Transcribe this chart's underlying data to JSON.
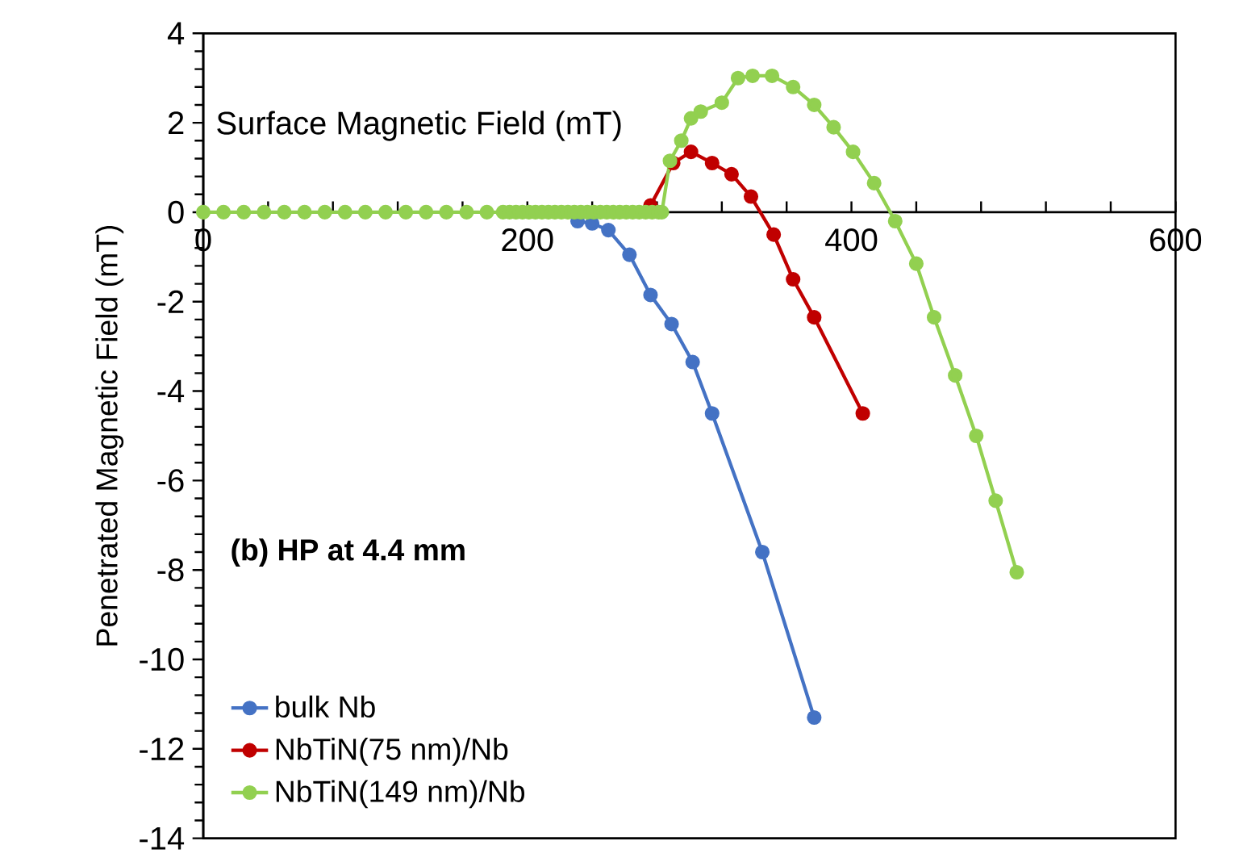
{
  "chart_data": {
    "type": "line",
    "xlabel": "Surface Magnetic Field (mT)",
    "ylabel": "Penetrated Magnetic Field (mT)",
    "annotations": [
      "(b) HP at 4.4 mm"
    ],
    "xlim": [
      0,
      600
    ],
    "ylim": [
      -14,
      4
    ],
    "xticks": [
      0,
      {
        "value": 40,
        "label": null
      },
      {
        "value": 80,
        "label": null
      },
      {
        "value": 120,
        "label": null
      },
      {
        "value": 160,
        "label": null
      },
      200,
      {
        "value": 240,
        "label": null
      },
      {
        "value": 280,
        "label": null
      },
      {
        "value": 320,
        "label": null
      },
      {
        "value": 360,
        "label": null
      },
      400,
      {
        "value": 440,
        "label": null
      },
      {
        "value": 480,
        "label": null
      },
      {
        "value": 520,
        "label": null
      },
      {
        "value": 560,
        "label": null
      },
      600
    ],
    "yticks": [
      -14,
      -12,
      -10,
      -8,
      -6,
      -4,
      -2,
      0,
      2,
      4
    ],
    "grid": false,
    "legend": "bottom left",
    "marker": "circle",
    "line_style": "solid",
    "series": [
      {
        "name": "bulk Nb",
        "color": "#4472c4",
        "x": [
          231,
          240,
          250,
          263,
          276,
          289,
          302,
          314,
          345,
          377
        ],
        "values": [
          -0.2,
          -0.25,
          -0.4,
          -0.95,
          -1.85,
          -2.5,
          -3.35,
          -4.5,
          -7.6,
          -11.3
        ]
      },
      {
        "name": "NbTiN(75 nm)/Nb",
        "color": "#c00000",
        "x": [
          276,
          290,
          301,
          314,
          326,
          338,
          352,
          364,
          377,
          407
        ],
        "values": [
          0.15,
          1.1,
          1.35,
          1.1,
          0.85,
          0.35,
          -0.5,
          -1.5,
          -2.35,
          -4.5
        ]
      },
      {
        "name": "NbTiN(149 nm)/Nb",
        "color": "#92d050",
        "x": [
          0,
          12.5,
          25,
          37.5,
          50,
          62.5,
          75,
          87.5,
          100,
          112.5,
          125,
          137.5,
          150,
          162.5,
          175,
          185,
          189,
          193,
          197,
          201,
          205,
          209,
          213,
          217,
          221,
          225,
          229,
          233,
          237,
          241,
          245,
          249,
          253,
          257,
          261,
          265,
          269,
          273,
          277,
          281,
          283,
          288,
          295,
          301,
          307,
          320,
          330,
          339,
          351,
          364,
          377,
          389,
          401,
          414,
          427,
          440,
          451,
          464,
          477,
          489,
          502
        ],
        "values": [
          0,
          0,
          0,
          0,
          0,
          0,
          0,
          0,
          0,
          0,
          0,
          0,
          0,
          0,
          0,
          0,
          0,
          0,
          0,
          0,
          0,
          0,
          0,
          0,
          0,
          0,
          0,
          0,
          0,
          0,
          0,
          0,
          0,
          0,
          0,
          0,
          0,
          0,
          0,
          0,
          0,
          1.15,
          1.6,
          2.1,
          2.25,
          2.45,
          3.0,
          3.05,
          3.05,
          2.8,
          2.4,
          1.9,
          1.35,
          0.65,
          -0.2,
          -1.15,
          -2.35,
          -3.65,
          -5.0,
          -6.45,
          -8.05
        ]
      }
    ]
  }
}
